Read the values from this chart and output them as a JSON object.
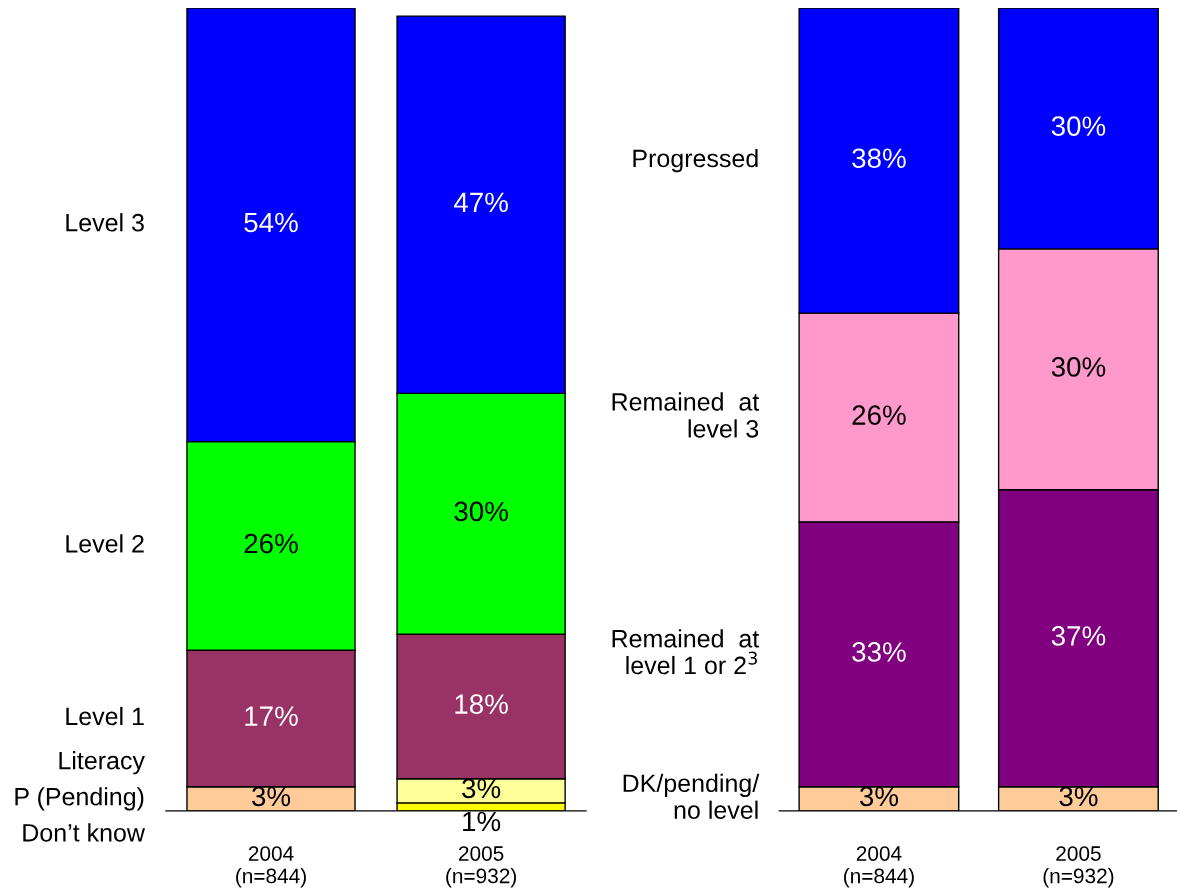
{
  "chart_data": [
    {
      "type": "bar",
      "stacked": true,
      "categories": [
        "2004\n(n=844)",
        "2005\n(n=932)"
      ],
      "tick_labels": "x",
      "annotations": [
        "Literacy",
        "Don’t know"
      ],
      "series": [
        {
          "color": "#ffff00",
          "values": [
            null,
            1
          ],
          "value_labels": [
            null,
            "1%"
          ]
        },
        {
          "name": "P (Pending)",
          "colors": [
            "#ffcc99",
            "#ffff99"
          ],
          "values": [
            3,
            3
          ],
          "value_labels": [
            "3%",
            "3%"
          ]
        },
        {
          "name": "Level 1",
          "color": "#993366",
          "values": [
            17,
            18
          ],
          "value_labels": [
            "17%",
            "18%"
          ]
        },
        {
          "name": "Level 2",
          "color": "#00ff00",
          "values": [
            26,
            30
          ],
          "value_labels": [
            "26%",
            "30%"
          ]
        },
        {
          "name": "Level 3",
          "color": "#0000ff",
          "values": [
            54,
            47
          ],
          "value_labels": [
            "54%",
            "47%"
          ]
        }
      ]
    },
    {
      "type": "bar",
      "stacked": true,
      "categories": [
        "2004\n(n=844)",
        "2005\n(n=932)"
      ],
      "tick_labels": "x",
      "series": [
        {
          "name": "DK/pending/\nno level",
          "color": "#ffcc99",
          "values": [
            3,
            3
          ],
          "value_labels": [
            "3%",
            "3%"
          ]
        },
        {
          "name": "Remained  at\nlevel 1 or 2$^{3}$",
          "color": "#800080",
          "values": [
            33,
            37
          ],
          "value_labels": [
            "33%",
            "37%"
          ]
        },
        {
          "name": "Remained  at\nlevel 3",
          "color": "#ff99cc",
          "values": [
            26,
            30
          ],
          "value_labels": [
            "26%",
            "30%"
          ]
        },
        {
          "name": "Progressed",
          "color": "#0000ff",
          "values": [
            38,
            30
          ],
          "value_labels": [
            "38%",
            "30%"
          ]
        }
      ]
    }
  ]
}
